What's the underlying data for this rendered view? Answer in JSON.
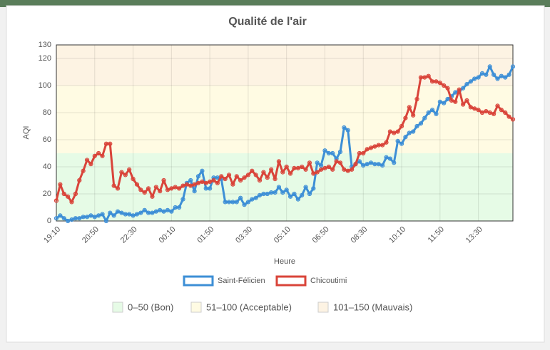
{
  "chart_data": {
    "type": "line",
    "title": "Qualité de l'air",
    "x_label": "Heure",
    "y_label": "AQI",
    "categories": [
      "19:10",
      null,
      null,
      null,
      null,
      null,
      null,
      null,
      null,
      null,
      "20:50",
      null,
      null,
      null,
      null,
      null,
      null,
      null,
      null,
      null,
      "22:30",
      null,
      null,
      null,
      null,
      null,
      null,
      null,
      null,
      null,
      "00:10",
      null,
      null,
      null,
      null,
      null,
      null,
      null,
      null,
      null,
      "01:50",
      null,
      null,
      null,
      null,
      null,
      null,
      null,
      null,
      null,
      "03:30",
      null,
      null,
      null,
      null,
      null,
      null,
      null,
      null,
      null,
      "05:10",
      null,
      null,
      null,
      null,
      null,
      null,
      null,
      null,
      null,
      "06:50",
      null,
      null,
      null,
      null,
      null,
      null,
      null,
      null,
      null,
      "08:30",
      null,
      null,
      null,
      null,
      null,
      null,
      null,
      null,
      null,
      "10:10",
      null,
      null,
      null,
      null,
      null,
      null,
      null,
      null,
      null,
      "11:50",
      null,
      null,
      null,
      null,
      null,
      null,
      null,
      null,
      null,
      "13:30",
      null,
      null,
      null,
      null,
      null,
      null,
      null,
      null,
      null
    ],
    "series": [
      {
        "name": "Saint-Félicien",
        "color": "#3d8fd6",
        "values": [
          2,
          4,
          2,
          0,
          1,
          2,
          2,
          3,
          3,
          4,
          3,
          4,
          5,
          0,
          6,
          4,
          7,
          6,
          5,
          5,
          4,
          5,
          6,
          8,
          6,
          6,
          7,
          8,
          7,
          8,
          7,
          10,
          10,
          16,
          28,
          30,
          22,
          33,
          37,
          24,
          24,
          32,
          32,
          31,
          14,
          14,
          14,
          14,
          17,
          12,
          14,
          16,
          17,
          19,
          20,
          20,
          21,
          21,
          25,
          21,
          23,
          18,
          20,
          16,
          19,
          25,
          20,
          24,
          43,
          41,
          52,
          50,
          50,
          46,
          51,
          69,
          67,
          40,
          42,
          44,
          41,
          42,
          43,
          42,
          42,
          41,
          47,
          46,
          43,
          59,
          57,
          62,
          65,
          66,
          70,
          72,
          76,
          80,
          82,
          79,
          88,
          87,
          90,
          92,
          95,
          96,
          98,
          101,
          103,
          105,
          106,
          109,
          108,
          114,
          108,
          105,
          107,
          106,
          108,
          114
        ]
      },
      {
        "name": "Chicoutimi",
        "color": "#d9443a",
        "values": [
          15,
          27,
          20,
          18,
          14,
          20,
          30,
          37,
          45,
          42,
          48,
          50,
          48,
          57,
          57,
          26,
          24,
          36,
          34,
          38,
          31,
          27,
          23,
          21,
          24,
          18,
          25,
          22,
          30,
          23,
          24,
          25,
          24,
          26,
          27,
          26,
          27,
          28,
          29,
          28,
          29,
          30,
          28,
          33,
          31,
          34,
          27,
          33,
          30,
          32,
          34,
          37,
          34,
          30,
          36,
          32,
          38,
          31,
          44,
          36,
          40,
          35,
          39,
          39,
          40,
          38,
          43,
          35,
          36,
          38,
          39,
          40,
          38,
          44,
          43,
          38,
          37,
          38,
          42,
          50,
          50,
          53,
          54,
          55,
          56,
          56,
          58,
          66,
          65,
          66,
          70,
          76,
          84,
          78,
          90,
          106,
          106,
          107,
          103,
          103,
          102,
          100,
          98,
          89,
          88,
          97,
          86,
          89,
          84,
          83,
          82,
          80,
          81,
          80,
          79,
          85,
          82,
          80,
          77,
          75
        ]
      }
    ],
    "ylim": [
      0,
      130
    ],
    "yticks": [
      0,
      20,
      40,
      60,
      80,
      100,
      120,
      130
    ],
    "grid": true,
    "bands": [
      {
        "label": "0–50 (Bon)",
        "from": 0,
        "to": 50,
        "color": "#e6fbe6"
      },
      {
        "label": "51–100 (Acceptable)",
        "from": 50,
        "to": 100,
        "color": "#fffbe3"
      },
      {
        "label": "101–150 (Mauvais)",
        "from": 100,
        "to": 150,
        "color": "#fdf3e3"
      }
    ]
  }
}
